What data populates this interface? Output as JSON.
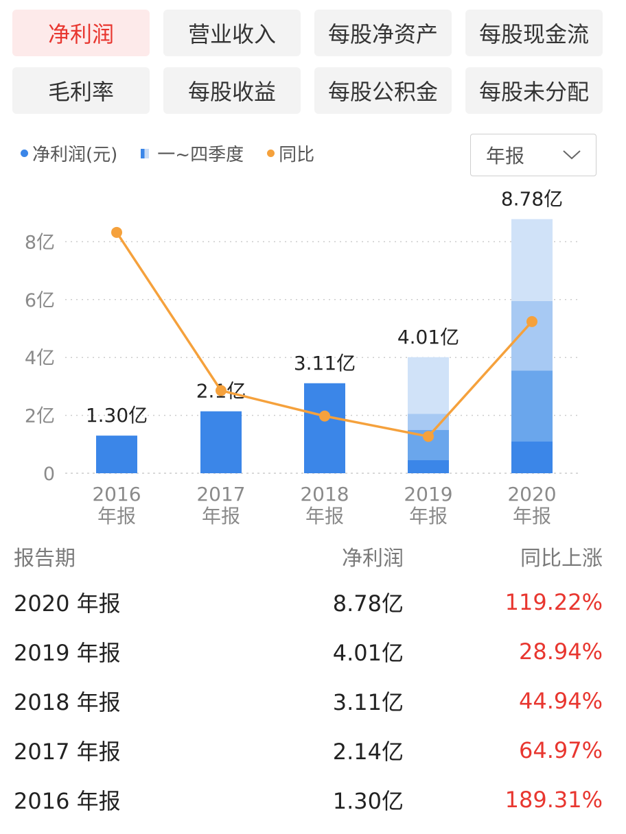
{
  "tabs": [
    [
      {
        "label": "净利润",
        "active": true
      },
      {
        "label": "营业收入"
      },
      {
        "label": "每股净资产"
      },
      {
        "label": "每股现金流"
      }
    ],
    [
      {
        "label": "毛利率"
      },
      {
        "label": "每股收益"
      },
      {
        "label": "每股公积金"
      },
      {
        "label": "每股未分配"
      }
    ]
  ],
  "legend": {
    "profit": "净利润(元)",
    "quarters": "一~四季度",
    "yoy": "同比"
  },
  "period_select": {
    "value": "年报"
  },
  "colors": {
    "accent": "#e8362f",
    "bar_full": "#3b86e8",
    "q1": "#3b86e8",
    "q2": "#6aa6ec",
    "q3": "#a7c9f3",
    "q4": "#d0e2f8",
    "yoy_line": "#f5a13c",
    "grid": "#cccccc"
  },
  "chart_data": {
    "type": "bar",
    "categories": [
      "2016",
      "2017",
      "2018",
      "2019",
      "2020"
    ],
    "category_sub": "年报",
    "y_ticks": [
      "0",
      "2亿",
      "4亿",
      "6亿",
      "8亿"
    ],
    "ylim": [
      0,
      9
    ],
    "values": [
      1.3,
      2.14,
      3.11,
      4.01,
      8.78
    ],
    "value_labels": [
      "1.30亿",
      "2.1亿",
      "3.11亿",
      "4.01亿",
      "8.78亿"
    ],
    "quarter_stacks": [
      null,
      null,
      null,
      [
        0.45,
        1.05,
        0.55,
        1.96
      ],
      [
        1.1,
        2.45,
        2.4,
        2.83
      ]
    ],
    "yoy_percent": [
      189.31,
      64.97,
      44.94,
      28.94,
      119.22
    ],
    "yoy_range": [
      0,
      200
    ]
  },
  "table": {
    "headers": [
      "报告期",
      "净利润",
      "同比上涨"
    ],
    "rows": [
      [
        "2020 年报",
        "8.78亿",
        "119.22%"
      ],
      [
        "2019 年报",
        "4.01亿",
        "28.94%"
      ],
      [
        "2018 年报",
        "3.11亿",
        "44.94%"
      ],
      [
        "2017 年报",
        "2.14亿",
        "64.97%"
      ],
      [
        "2016 年报",
        "1.30亿",
        "189.31%"
      ]
    ]
  }
}
